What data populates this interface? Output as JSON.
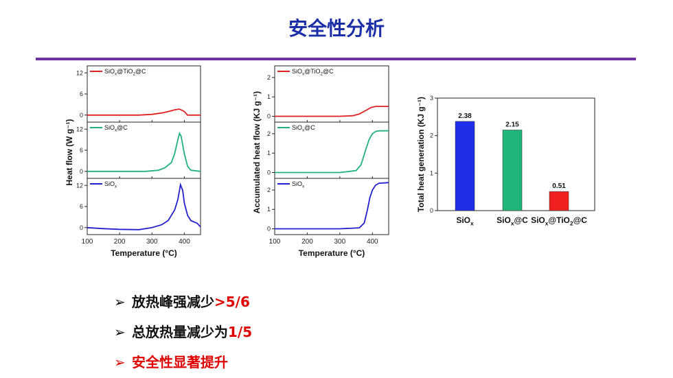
{
  "slide": {
    "title": "安全性分析",
    "bullets": [
      {
        "text": "放热峰强减少",
        "highlight": ">5/6",
        "red": false
      },
      {
        "text": "总放热量减少为",
        "highlight": "1/5",
        "red": false
      },
      {
        "text": "安全性显著提升",
        "highlight": "",
        "red": true
      }
    ],
    "bullet_marker": "➢",
    "colors": {
      "title": "#1a2fa8",
      "rule": "#7030a0",
      "highlight": "#e00000"
    }
  },
  "chart_data": [
    {
      "type": "line",
      "xlabel": "Temperature (°C)",
      "ylabel": "Heat flow (W g⁻¹)",
      "xlim": [
        100,
        450
      ],
      "x_ticks": [
        100,
        200,
        300,
        400
      ],
      "panels": [
        {
          "name": "SiOx@TiO2@C",
          "color": "#e02020",
          "ylim": [
            -2,
            14
          ],
          "y_ticks": [
            0,
            6,
            12
          ],
          "x": [
            100,
            200,
            260,
            300,
            330,
            350,
            370,
            385,
            400,
            410,
            420,
            450
          ],
          "y": [
            0,
            0,
            0,
            0.2,
            0.6,
            1.0,
            1.5,
            1.7,
            1.0,
            0,
            0,
            0
          ]
        },
        {
          "name": "SiOx@C",
          "color": "#20b080",
          "ylim": [
            -2,
            14
          ],
          "y_ticks": [
            0,
            6,
            12
          ],
          "x": [
            100,
            200,
            280,
            320,
            340,
            360,
            370,
            380,
            385,
            390,
            400,
            410,
            420,
            450
          ],
          "y": [
            0,
            0,
            0,
            0.3,
            1.0,
            2.5,
            5.0,
            9.0,
            10.8,
            10.0,
            5.0,
            1.5,
            0.3,
            0
          ]
        },
        {
          "name": "SiOx",
          "color": "#2020d0",
          "ylim": [
            -2,
            14
          ],
          "y_ticks": [
            0,
            6,
            12
          ],
          "x": [
            100,
            150,
            200,
            260,
            300,
            330,
            350,
            370,
            380,
            388,
            395,
            400,
            410,
            420,
            440,
            450
          ],
          "y": [
            0,
            -0.3,
            -0.5,
            -0.6,
            0,
            0.8,
            2.0,
            5.0,
            8.0,
            12.2,
            10.5,
            7.0,
            3.5,
            2.0,
            1.2,
            0.2
          ]
        }
      ]
    },
    {
      "type": "line",
      "xlabel": "Temperature (°C)",
      "ylabel": "Accumulated heat flow (KJ g⁻¹)",
      "xlim": [
        100,
        450
      ],
      "x_ticks": [
        100,
        200,
        300,
        400
      ],
      "panels": [
        {
          "name": "SiOx@TiO2@C",
          "color": "#e02020",
          "ylim": [
            -0.3,
            2.6
          ],
          "y_ticks": [
            0,
            1,
            2
          ],
          "x": [
            100,
            200,
            300,
            340,
            360,
            380,
            395,
            410,
            450
          ],
          "y": [
            0,
            0,
            0,
            0.03,
            0.12,
            0.3,
            0.45,
            0.51,
            0.51
          ]
        },
        {
          "name": "SiOx@C",
          "color": "#20b080",
          "ylim": [
            -0.3,
            2.6
          ],
          "y_ticks": [
            0,
            1,
            2
          ],
          "x": [
            100,
            200,
            300,
            350,
            365,
            380,
            390,
            400,
            410,
            420,
            450
          ],
          "y": [
            0,
            0,
            0,
            0.1,
            0.4,
            1.2,
            1.7,
            2.0,
            2.12,
            2.15,
            2.15
          ]
        },
        {
          "name": "SiOx",
          "color": "#2020d0",
          "ylim": [
            -0.3,
            2.6
          ],
          "y_ticks": [
            0,
            1,
            2
          ],
          "x": [
            100,
            200,
            300,
            360,
            375,
            385,
            392,
            400,
            410,
            420,
            450
          ],
          "y": [
            0,
            0,
            0,
            0.05,
            0.3,
            1.0,
            1.6,
            2.0,
            2.25,
            2.35,
            2.38
          ]
        }
      ]
    },
    {
      "type": "bar",
      "ylabel": "Total heat generation (KJ g⁻¹)",
      "ylim": [
        0,
        3
      ],
      "y_ticks": [
        0,
        1,
        2,
        3
      ],
      "categories": [
        "SiOx",
        "SiOx@C",
        "SiOx@TiO2@C"
      ],
      "values": [
        2.38,
        2.15,
        0.51
      ],
      "colors": [
        "#1f2fe8",
        "#22b57a",
        "#ee2020"
      ]
    }
  ]
}
